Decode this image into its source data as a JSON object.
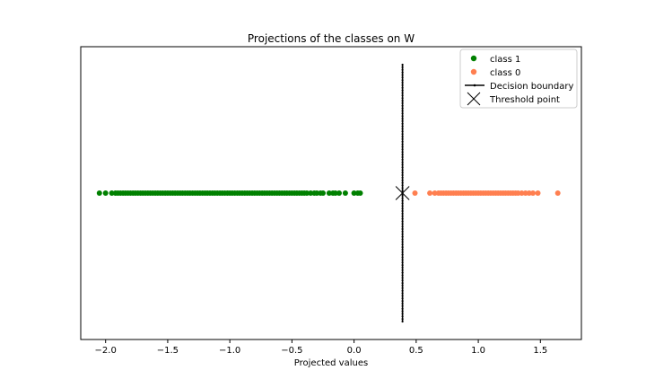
{
  "chart_data": {
    "type": "scatter",
    "title": "Projections of the classes on W",
    "xlabel": "Projected values",
    "ylabel": "",
    "xlim": [
      -2.2,
      1.83
    ],
    "ylim": [
      -0.57,
      0.57
    ],
    "xticks": [
      -2.0,
      -1.5,
      -1.0,
      -0.5,
      0.0,
      0.5,
      1.0,
      1.5
    ],
    "xtick_labels": [
      "−2.0",
      "−1.5",
      "−1.0",
      "−0.5",
      "0.0",
      "0.5",
      "1.0",
      "1.5"
    ],
    "yticks": [],
    "grid": false,
    "legend_placement": "top-right",
    "series": [
      {
        "name": "class 1",
        "kind": "points",
        "color": "#008000",
        "marker": "circle",
        "y": 0,
        "x": [
          -2.05,
          -2.0,
          -1.95,
          -1.92,
          -1.9,
          -1.88,
          -1.86,
          -1.84,
          -1.82,
          -1.8,
          -1.78,
          -1.76,
          -1.74,
          -1.72,
          -1.7,
          -1.68,
          -1.66,
          -1.64,
          -1.62,
          -1.6,
          -1.58,
          -1.56,
          -1.54,
          -1.52,
          -1.5,
          -1.48,
          -1.46,
          -1.44,
          -1.42,
          -1.4,
          -1.38,
          -1.36,
          -1.34,
          -1.32,
          -1.3,
          -1.28,
          -1.26,
          -1.24,
          -1.22,
          -1.2,
          -1.18,
          -1.16,
          -1.14,
          -1.12,
          -1.1,
          -1.08,
          -1.06,
          -1.04,
          -1.02,
          -1.0,
          -0.98,
          -0.96,
          -0.94,
          -0.92,
          -0.9,
          -0.88,
          -0.86,
          -0.84,
          -0.82,
          -0.8,
          -0.78,
          -0.76,
          -0.74,
          -0.72,
          -0.7,
          -0.68,
          -0.66,
          -0.64,
          -0.62,
          -0.6,
          -0.58,
          -0.56,
          -0.54,
          -0.52,
          -0.5,
          -0.48,
          -0.46,
          -0.44,
          -0.42,
          -0.4,
          -0.38,
          -0.35,
          -0.32,
          -0.3,
          -0.27,
          -0.25,
          -0.2,
          -0.17,
          -0.15,
          -0.12,
          -0.07,
          0.0,
          0.03,
          0.05
        ]
      },
      {
        "name": "class 0",
        "kind": "points",
        "color": "#ff7f50",
        "marker": "circle",
        "y": 0,
        "x": [
          0.49,
          0.61,
          0.65,
          0.68,
          0.7,
          0.72,
          0.74,
          0.76,
          0.78,
          0.8,
          0.82,
          0.84,
          0.86,
          0.88,
          0.9,
          0.92,
          0.94,
          0.96,
          0.98,
          1.0,
          1.02,
          1.04,
          1.06,
          1.08,
          1.1,
          1.12,
          1.14,
          1.16,
          1.18,
          1.2,
          1.22,
          1.24,
          1.26,
          1.28,
          1.3,
          1.32,
          1.35,
          1.38,
          1.41,
          1.44,
          1.48,
          1.64
        ]
      },
      {
        "name": "Decision boundary",
        "kind": "vline",
        "color": "#000000",
        "x": 0.39,
        "y_range": [
          -0.5,
          0.5
        ]
      },
      {
        "name": "Threshold point",
        "kind": "marker",
        "color": "#000000",
        "marker": "x",
        "x": 0.39,
        "y": 0
      }
    ]
  }
}
